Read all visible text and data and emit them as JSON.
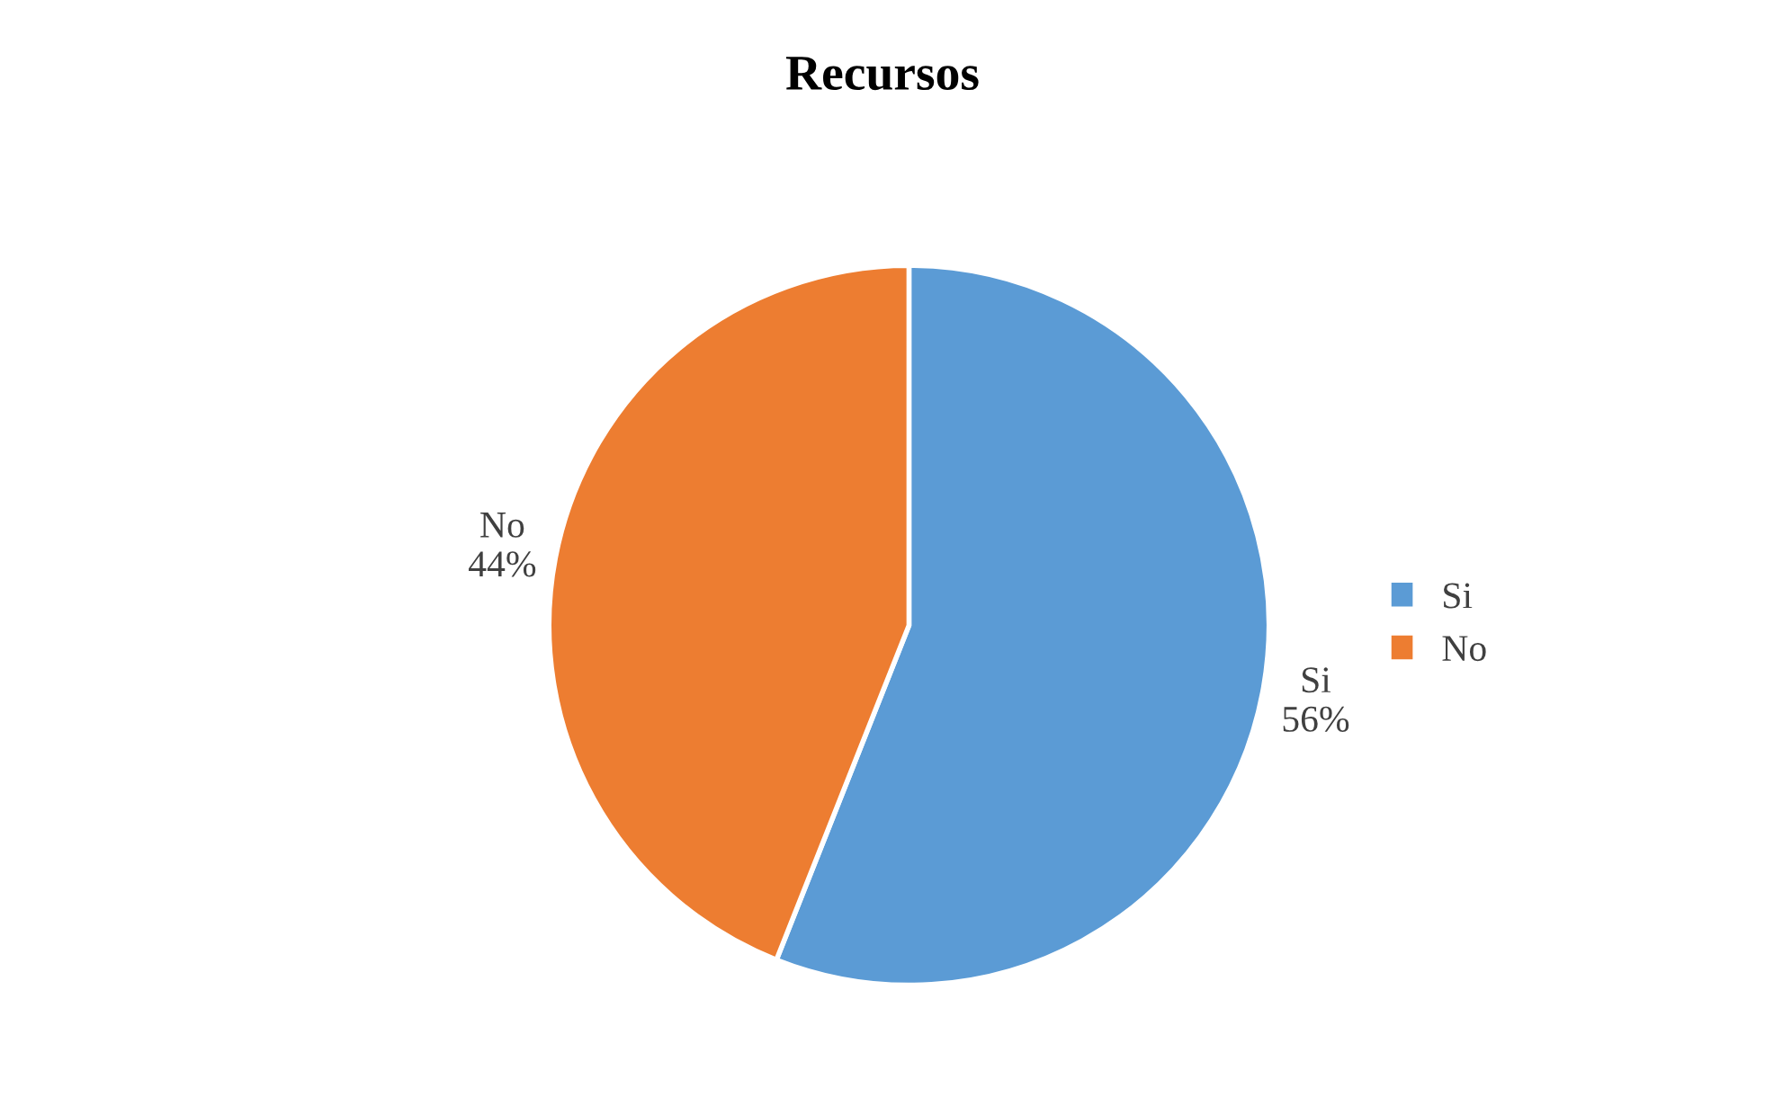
{
  "chart_data": {
    "type": "pie",
    "title": "Recursos",
    "categories": [
      "Si",
      "No"
    ],
    "values": [
      56,
      44
    ],
    "value_labels": [
      "56%",
      "44%"
    ],
    "colors": [
      "#5b9bd5",
      "#ed7d31"
    ],
    "legend": "right"
  }
}
